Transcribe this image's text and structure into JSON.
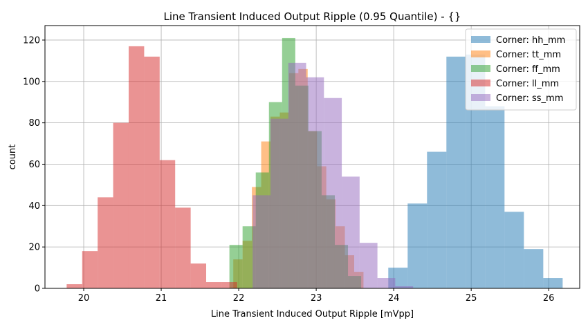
{
  "chart_data": {
    "type": "histogram",
    "title": "Line Transient Induced Output Ripple (0.95 Quantile) - {}",
    "xlabel": "Line Transient Induced Output Ripple [mVpp]",
    "ylabel": "count",
    "xlim": [
      19.5,
      26.4
    ],
    "ylim": [
      0,
      127
    ],
    "xticks": [
      20,
      21,
      22,
      23,
      24,
      25,
      26
    ],
    "yticks": [
      0,
      20,
      40,
      60,
      80,
      100,
      120
    ],
    "grid": true,
    "legend_position": "top-right",
    "alpha": 0.5,
    "series": [
      {
        "name": "Corner: hh_mm",
        "color": "#1f77b4",
        "bins": [
          {
            "x0": 23.93,
            "x1": 24.18,
            "count": 10
          },
          {
            "x0": 24.18,
            "x1": 24.43,
            "count": 41
          },
          {
            "x0": 24.43,
            "x1": 24.68,
            "count": 66
          },
          {
            "x0": 24.68,
            "x1": 24.93,
            "count": 112
          },
          {
            "x0": 24.93,
            "x1": 25.18,
            "count": 113
          },
          {
            "x0": 25.18,
            "x1": 25.43,
            "count": 88
          },
          {
            "x0": 25.43,
            "x1": 25.68,
            "count": 37
          },
          {
            "x0": 25.68,
            "x1": 25.93,
            "count": 19
          },
          {
            "x0": 25.93,
            "x1": 26.18,
            "count": 5
          }
        ]
      },
      {
        "name": "Corner: tt_mm",
        "color": "#ff7f0e",
        "bins": [
          {
            "x0": 21.93,
            "x1": 22.05,
            "count": 14
          },
          {
            "x0": 22.05,
            "x1": 22.17,
            "count": 23
          },
          {
            "x0": 22.17,
            "x1": 22.29,
            "count": 49
          },
          {
            "x0": 22.29,
            "x1": 22.41,
            "count": 71
          },
          {
            "x0": 22.41,
            "x1": 22.53,
            "count": 83
          },
          {
            "x0": 22.53,
            "x1": 22.65,
            "count": 85
          },
          {
            "x0": 22.65,
            "x1": 22.77,
            "count": 104
          },
          {
            "x0": 22.77,
            "x1": 22.89,
            "count": 106
          },
          {
            "x0": 22.89,
            "x1": 23.01,
            "count": 76
          },
          {
            "x0": 23.01,
            "x1": 23.13,
            "count": 59
          },
          {
            "x0": 23.13,
            "x1": 23.25,
            "count": 43
          },
          {
            "x0": 23.25,
            "x1": 23.37,
            "count": 30
          },
          {
            "x0": 23.37,
            "x1": 23.49,
            "count": 16
          },
          {
            "x0": 23.49,
            "x1": 23.61,
            "count": 8
          }
        ]
      },
      {
        "name": "Corner: ff_mm",
        "color": "#2ca02c",
        "bins": [
          {
            "x0": 21.88,
            "x1": 22.05,
            "count": 21
          },
          {
            "x0": 22.05,
            "x1": 22.22,
            "count": 30
          },
          {
            "x0": 22.22,
            "x1": 22.39,
            "count": 56
          },
          {
            "x0": 22.39,
            "x1": 22.56,
            "count": 90
          },
          {
            "x0": 22.56,
            "x1": 22.73,
            "count": 121
          },
          {
            "x0": 22.73,
            "x1": 22.9,
            "count": 98
          },
          {
            "x0": 22.9,
            "x1": 23.07,
            "count": 76
          },
          {
            "x0": 23.07,
            "x1": 23.24,
            "count": 45
          },
          {
            "x0": 23.24,
            "x1": 23.41,
            "count": 21
          },
          {
            "x0": 23.41,
            "x1": 23.58,
            "count": 6
          }
        ]
      },
      {
        "name": "Corner: ll_mm",
        "color": "#d62728",
        "bins": [
          {
            "x0": 19.78,
            "x1": 19.98,
            "count": 2
          },
          {
            "x0": 19.98,
            "x1": 20.18,
            "count": 18
          },
          {
            "x0": 20.18,
            "x1": 20.38,
            "count": 44
          },
          {
            "x0": 20.38,
            "x1": 20.58,
            "count": 80
          },
          {
            "x0": 20.58,
            "x1": 20.78,
            "count": 117
          },
          {
            "x0": 20.78,
            "x1": 20.98,
            "count": 112
          },
          {
            "x0": 20.98,
            "x1": 21.18,
            "count": 62
          },
          {
            "x0": 21.18,
            "x1": 21.38,
            "count": 39
          },
          {
            "x0": 21.38,
            "x1": 21.58,
            "count": 12
          },
          {
            "x0": 21.58,
            "x1": 21.78,
            "count": 3
          },
          {
            "x0": 21.78,
            "x1": 21.98,
            "count": 3
          }
        ]
      },
      {
        "name": "Corner: ss_mm",
        "color": "#9467bd",
        "bins": [
          {
            "x0": 22.18,
            "x1": 22.41,
            "count": 45
          },
          {
            "x0": 22.41,
            "x1": 22.64,
            "count": 82
          },
          {
            "x0": 22.64,
            "x1": 22.87,
            "count": 109
          },
          {
            "x0": 22.87,
            "x1": 23.1,
            "count": 102
          },
          {
            "x0": 23.1,
            "x1": 23.33,
            "count": 92
          },
          {
            "x0": 23.33,
            "x1": 23.56,
            "count": 54
          },
          {
            "x0": 23.56,
            "x1": 23.79,
            "count": 22
          },
          {
            "x0": 23.79,
            "x1": 24.02,
            "count": 5
          },
          {
            "x0": 24.02,
            "x1": 24.25,
            "count": 1
          }
        ]
      }
    ]
  }
}
